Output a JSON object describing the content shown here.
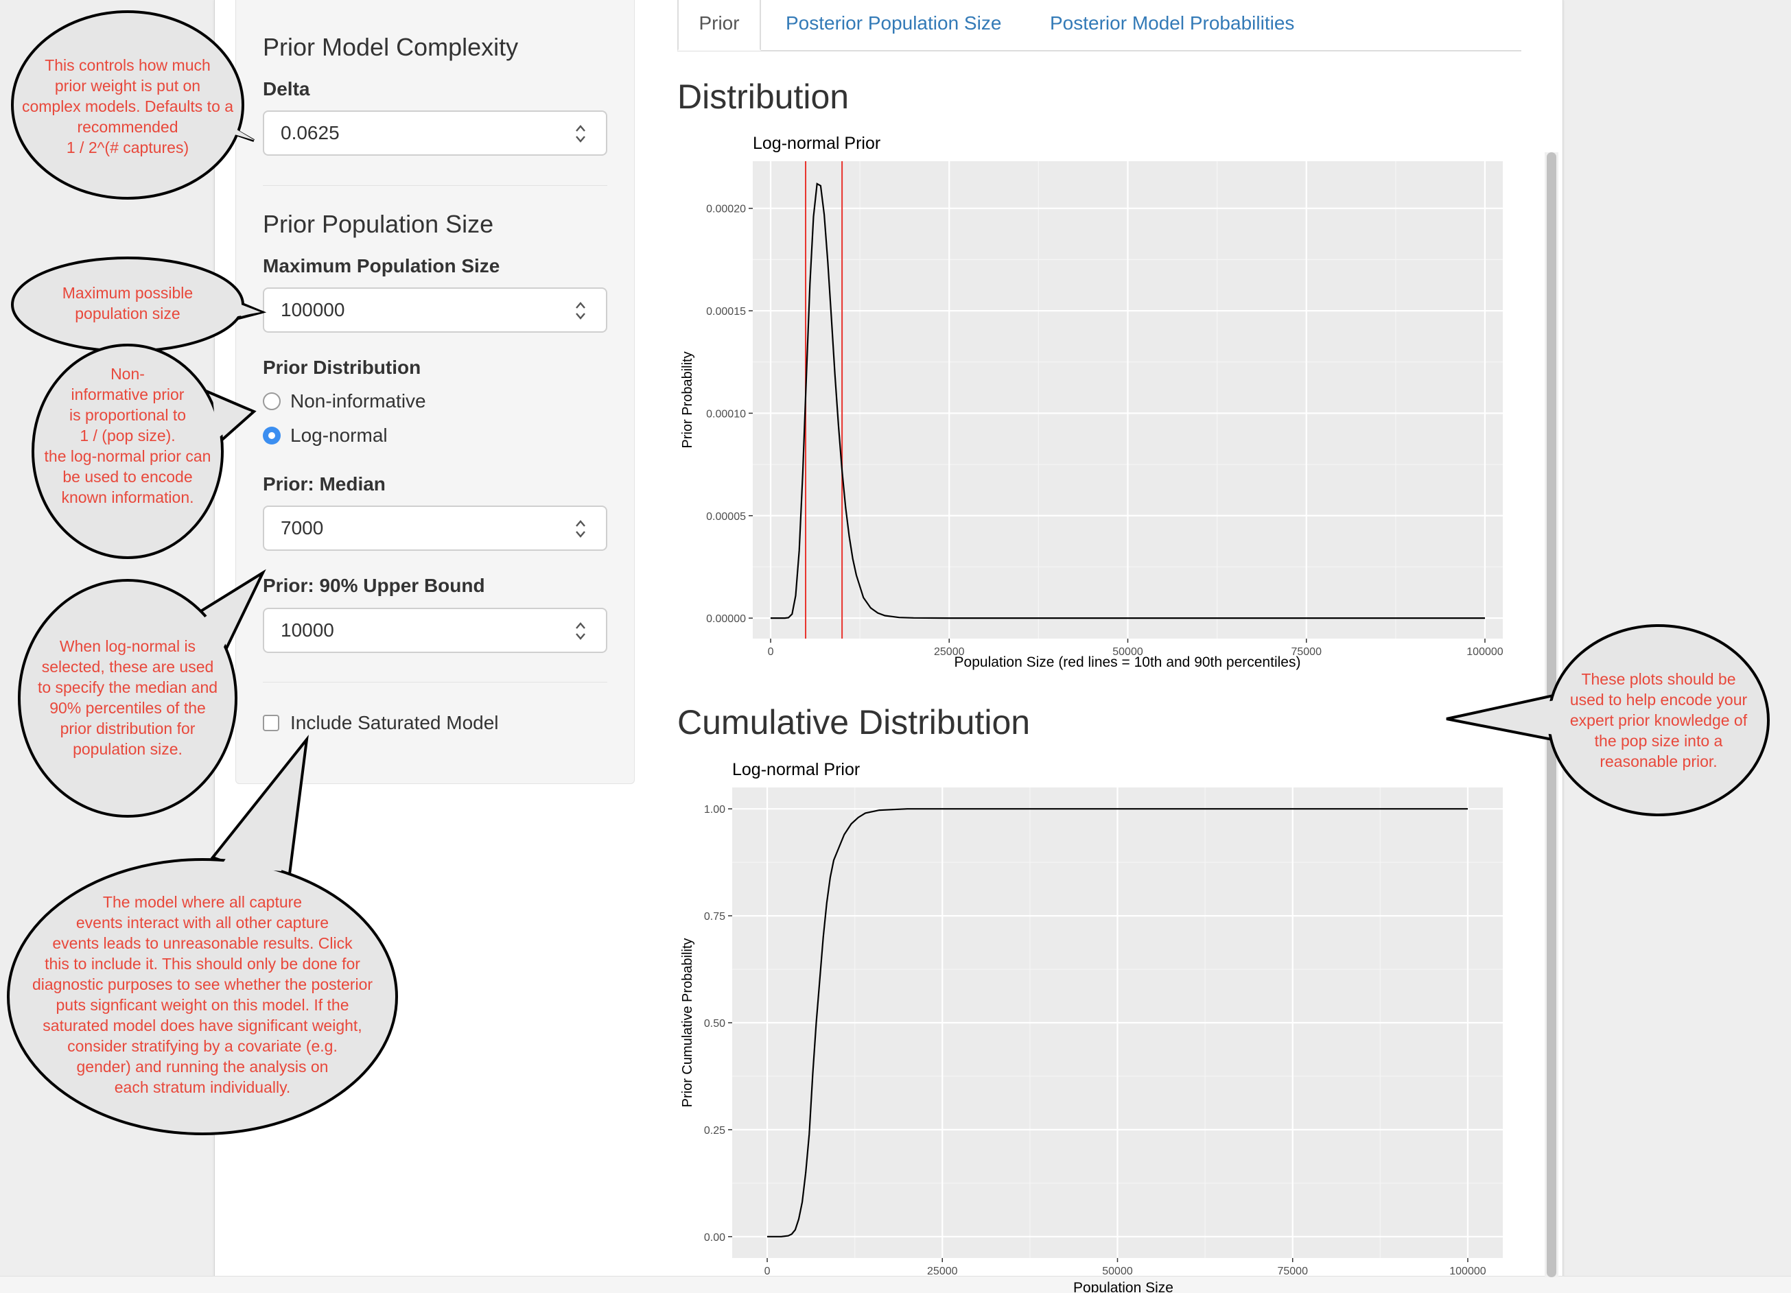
{
  "sidebar": {
    "complexity_heading": "Prior Model Complexity",
    "delta_label": "Delta",
    "delta_value": "0.0625",
    "popsize_heading": "Prior Population Size",
    "max_pop_label": "Maximum Population Size",
    "max_pop_value": "100000",
    "prior_dist_label": "Prior Distribution",
    "options": [
      "Non-informative",
      "Log-normal"
    ],
    "selected_option": "Log-normal",
    "median_label": "Prior: Median",
    "median_value": "7000",
    "upper_label": "Prior: 90% Upper Bound",
    "upper_value": "10000",
    "saturated_label": "Include Saturated Model",
    "saturated_checked": false
  },
  "tabs": [
    "Prior",
    "Posterior Population Size",
    "Posterior Model Probabilities"
  ],
  "active_tab": "Prior",
  "main": {
    "distribution_heading": "Distribution",
    "cumulative_heading": "Cumulative Distribution"
  },
  "callouts": {
    "delta": [
      "This controls how much",
      "prior weight is put on",
      "complex models. Defaults to a",
      "recommended",
      "1 / 2^(# captures)"
    ],
    "maxpop": [
      "Maximum possible",
      "population size"
    ],
    "prior": [
      "Non-",
      "informative prior",
      "is proportional to",
      "1 / (pop size).",
      "the log-normal prior can",
      "be used to encode",
      "known information."
    ],
    "lognormal": [
      "When log-normal is",
      "selected, these are used",
      "to specify the median and",
      "90% percentiles of the",
      "prior distribution for",
      "population size."
    ],
    "saturated": [
      "The model where all capture",
      "events interact with all other capture",
      "events leads to unreasonable results. Click",
      "this to include it. This should only be done for",
      "diagnostic purposes to see whether the posterior",
      "puts signficant weight on this model. If the",
      "saturated model does have significant weight,",
      "consider stratifying by a covariate (e.g.",
      "gender) and running the analysis on",
      "each stratum individually."
    ],
    "plots": [
      "These plots should be",
      "used to help encode your",
      "expert prior knowledge of",
      "the pop size into a",
      "reasonable prior."
    ]
  },
  "colors": {
    "callout_text": "#e8483b",
    "callout_fill": "#e6e6e6",
    "link": "#337ab7",
    "radio_on": "#3b8ef0",
    "percentile_line": "#e8322c",
    "plot_bg": "#ebebeb"
  },
  "chart_data": [
    {
      "type": "line",
      "title": "Log-normal Prior",
      "xlabel": "Population Size (red lines = 10th and 90th percentiles)",
      "ylabel": "Prior Probability",
      "xlim": [
        -2500,
        102500
      ],
      "ylim": [
        -1e-05,
        0.000223
      ],
      "x_ticks": [
        0,
        25000,
        50000,
        75000,
        100000
      ],
      "x_tick_labels": [
        "0",
        "25000",
        "50000",
        "75000",
        "100000"
      ],
      "y_ticks": [
        0,
        5e-05,
        0.0001,
        0.00015,
        0.0002
      ],
      "y_tick_labels": [
        "0.00000",
        "0.00005",
        "0.00010",
        "0.00015",
        "0.00020"
      ],
      "vlines": [
        4900,
        10000
      ],
      "series": [
        {
          "x": [
            0,
            1000,
            2000,
            2500,
            3000,
            3500,
            4000,
            4500,
            5000,
            5500,
            6000,
            6500,
            7000,
            7500,
            8000,
            8500,
            9000,
            9500,
            10000,
            10500,
            11000,
            11500,
            12000,
            13000,
            14000,
            15000,
            16000,
            18000,
            20000,
            25000,
            30000,
            40000,
            60000,
            80000,
            100000
          ],
          "y": [
            0,
            0,
            0,
            2e-07,
            2e-06,
            1.1e-05,
            3.3e-05,
            7.1e-05,
            0.000118,
            0.000163,
            0.000196,
            0.000212,
            0.000211,
            0.000197,
            0.000174,
            0.000147,
            0.000119,
            9.4e-05,
            7.2e-05,
            5.4e-05,
            4e-05,
            2.9e-05,
            2.1e-05,
            1e-05,
            5e-06,
            2.5e-06,
            1.2e-06,
            3e-07,
            1e-07,
            0,
            0,
            0,
            0,
            0,
            0
          ]
        }
      ],
      "grid": true
    },
    {
      "type": "line",
      "title": "Log-normal Prior",
      "xlabel": "Population Size",
      "ylabel": "Prior Cumulative Probability",
      "xlim": [
        -5000,
        105000
      ],
      "ylim": [
        -0.05,
        1.05
      ],
      "x_ticks": [
        0,
        25000,
        50000,
        75000,
        100000
      ],
      "x_tick_labels": [
        "0",
        "25000",
        "50000",
        "75000",
        "100000"
      ],
      "y_ticks": [
        0,
        0.25,
        0.5,
        0.75,
        1
      ],
      "y_tick_labels": [
        "0.00",
        "0.25",
        "0.50",
        "0.75",
        "1.00"
      ],
      "series": [
        {
          "x": [
            0,
            2000,
            3000,
            3500,
            4000,
            4500,
            5000,
            5500,
            6000,
            6500,
            7000,
            7500,
            8000,
            8500,
            9000,
            9500,
            10000,
            11000,
            12000,
            13000,
            14000,
            16000,
            20000,
            30000,
            100000
          ],
          "y": [
            0,
            0,
            0.002,
            0.006,
            0.016,
            0.041,
            0.081,
            0.15,
            0.24,
            0.38,
            0.5,
            0.6,
            0.7,
            0.78,
            0.84,
            0.88,
            0.9,
            0.94,
            0.965,
            0.98,
            0.99,
            0.997,
            1,
            1,
            1
          ]
        }
      ],
      "grid": true
    }
  ]
}
